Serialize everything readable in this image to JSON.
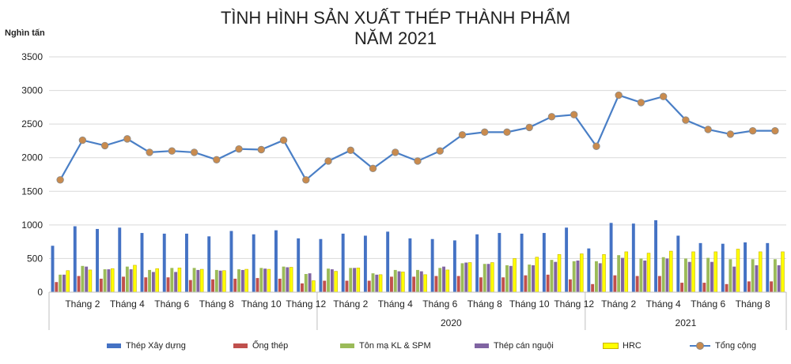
{
  "chart_data": {
    "type": "bar",
    "title": "TÌNH HÌNH SẢN XUẤT THÉP THÀNH PHẨM",
    "subtitle": "NĂM 2021",
    "ylabel": "Nghìn tấn",
    "ylim": [
      0,
      3500
    ],
    "yticks": [
      "0",
      "500",
      "1000",
      "1500",
      "2000",
      "2500",
      "3000",
      "3500"
    ],
    "grid": true,
    "legend_position": "bottom",
    "categories": [
      "Tháng 1",
      "Tháng 2",
      "Tháng 3",
      "Tháng 4",
      "Tháng 5",
      "Tháng 6",
      "Tháng 7",
      "Tháng 8",
      "Tháng 9",
      "Tháng 10",
      "Tháng 11",
      "Tháng 12",
      "Tháng 1",
      "Tháng 2",
      "Tháng 3",
      "Tháng 4",
      "Tháng 5",
      "Tháng 6",
      "Tháng 7",
      "Tháng 8",
      "Tháng 9",
      "Tháng 10",
      "Tháng 11",
      "Tháng 12",
      "Tháng 1",
      "Tháng 2",
      "Tháng 3",
      "Tháng 4",
      "Tháng 5",
      "Tháng 6",
      "Tháng 7",
      "Tháng 8",
      "Tháng 9"
    ],
    "x_tick_labels": [
      "Tháng 2",
      "Tháng 4",
      "Tháng 6",
      "Tháng 8",
      "Tháng 10",
      "Tháng 12",
      "Tháng 2",
      "Tháng 4",
      "Tháng 6",
      "Tháng 8",
      "Tháng 10",
      "Tháng 12",
      "Tháng 2",
      "Tháng 4",
      "Tháng 6",
      "Tháng 8"
    ],
    "x_tick_index": [
      1,
      3,
      5,
      7,
      9,
      11,
      13,
      15,
      17,
      19,
      21,
      23,
      25,
      27,
      29,
      31
    ],
    "year_groups": [
      {
        "label": "",
        "start": 0,
        "end": 11
      },
      {
        "label": "2020",
        "start": 12,
        "end": 23
      },
      {
        "label": "2021",
        "start": 24,
        "end": 32
      }
    ],
    "series": [
      {
        "name": "Thép Xây dựng",
        "type": "bar",
        "color": "#4472c4",
        "values": [
          690,
          980,
          940,
          960,
          880,
          870,
          870,
          830,
          910,
          860,
          920,
          800,
          790,
          870,
          840,
          900,
          800,
          790,
          770,
          860,
          880,
          870,
          880,
          960,
          650,
          1030,
          1020,
          1070,
          840,
          730,
          720,
          740,
          730
        ]
      },
      {
        "name": "Ống thép",
        "type": "bar",
        "color": "#c0504d",
        "values": [
          150,
          240,
          200,
          230,
          220,
          220,
          180,
          190,
          200,
          210,
          200,
          130,
          170,
          170,
          170,
          230,
          230,
          240,
          240,
          220,
          220,
          250,
          260,
          190,
          120,
          250,
          240,
          240,
          140,
          140,
          120,
          160,
          160
        ]
      },
      {
        "name": "Tôn mạ KL & SPM",
        "type": "bar",
        "color": "#9bbb59",
        "values": [
          260,
          390,
          340,
          380,
          330,
          360,
          360,
          330,
          340,
          360,
          380,
          270,
          350,
          360,
          280,
          330,
          330,
          360,
          430,
          420,
          400,
          410,
          480,
          460,
          460,
          550,
          500,
          520,
          500,
          510,
          490,
          490,
          490
        ]
      },
      {
        "name": "Thép cán nguội",
        "type": "bar",
        "color": "#8064a2",
        "values": [
          260,
          380,
          340,
          340,
          300,
          300,
          330,
          320,
          330,
          350,
          370,
          280,
          340,
          360,
          260,
          310,
          310,
          380,
          440,
          420,
          390,
          400,
          450,
          470,
          430,
          510,
          470,
          500,
          450,
          450,
          380,
          400,
          400
        ]
      },
      {
        "name": "HRC",
        "type": "bar",
        "color": "#ffff00",
        "values": [
          320,
          330,
          350,
          400,
          350,
          360,
          340,
          320,
          340,
          340,
          370,
          170,
          310,
          360,
          260,
          300,
          260,
          330,
          440,
          440,
          500,
          520,
          560,
          570,
          560,
          600,
          580,
          610,
          600,
          600,
          640,
          600,
          600
        ]
      },
      {
        "name": "Tổng cộng",
        "type": "line",
        "color": "#4a7fc6",
        "marker_color": "#c98b4e",
        "values": [
          1670,
          2260,
          2180,
          2280,
          2080,
          2100,
          2080,
          1970,
          2130,
          2120,
          2260,
          1670,
          1950,
          2110,
          1840,
          2080,
          1950,
          2100,
          2340,
          2380,
          2380,
          2450,
          2610,
          2640,
          2170,
          2930,
          2820,
          2910,
          2560,
          2420,
          2350,
          2400,
          2400
        ]
      }
    ]
  }
}
